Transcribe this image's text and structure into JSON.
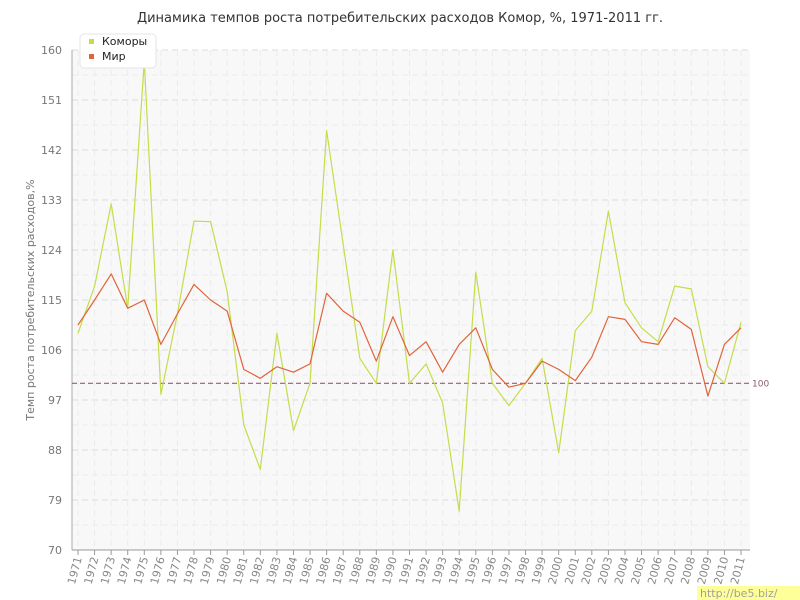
{
  "chart_data": {
    "type": "line",
    "title": "Динамика темпов роста потребительских расходов Комор, %, 1971-2011 гг.",
    "ylabel": "Темп роста потребительских расходов,%",
    "xlabel": "",
    "ylim": [
      70,
      160
    ],
    "yticks": [
      70,
      79,
      88,
      97,
      106,
      115,
      124,
      133,
      142,
      151,
      160
    ],
    "grid": true,
    "legend_position": "top-left",
    "categories": [
      "1971",
      "1972",
      "1973",
      "1974",
      "1975",
      "1976",
      "1977",
      "1978",
      "1979",
      "1980",
      "1981",
      "1982",
      "1983",
      "1984",
      "1985",
      "1986",
      "1987",
      "1988",
      "1989",
      "1990",
      "1991",
      "1992",
      "1993",
      "1994",
      "1995",
      "1996",
      "1997",
      "1998",
      "1999",
      "2000",
      "2001",
      "2002",
      "2003",
      "2004",
      "2005",
      "2006",
      "2007",
      "2008",
      "2009",
      "2010",
      "2011"
    ],
    "series": [
      {
        "name": "Коморы",
        "color": "#c4dd4a",
        "values": [
          109.0,
          117.5,
          132.3,
          113.5,
          158.0,
          98.0,
          112.5,
          129.2,
          129.1,
          116.5,
          92.5,
          84.5,
          109.0,
          91.5,
          100.0,
          145.5,
          125.0,
          104.5,
          100.0,
          124.0,
          100.0,
          103.5,
          96.5,
          77.0,
          120.0,
          100.0,
          96.0,
          100.0,
          104.5,
          87.5,
          109.5,
          113.0,
          131.0,
          114.5,
          110.0,
          107.5,
          117.5,
          117.0,
          103.0,
          100.0,
          111.0
        ]
      },
      {
        "name": "Мир",
        "color": "#e0643a",
        "values": [
          110.5,
          115.0,
          119.7,
          113.5,
          115.0,
          107.0,
          112.5,
          117.8,
          115.0,
          113.0,
          102.5,
          100.9,
          103.0,
          102.0,
          103.5,
          116.2,
          113.0,
          111.0,
          104.0,
          112.0,
          105.0,
          107.5,
          102.0,
          107.0,
          110.0,
          102.5,
          99.3,
          100.0,
          104.0,
          102.5,
          100.5,
          104.7,
          112.0,
          111.5,
          107.5,
          107.0,
          111.8,
          109.7,
          97.7,
          107.0,
          110.0
        ]
      }
    ],
    "reference_line": {
      "value": 100,
      "label": "100",
      "color": "#9e5a78"
    }
  },
  "watermark": "http://be5.biz/"
}
